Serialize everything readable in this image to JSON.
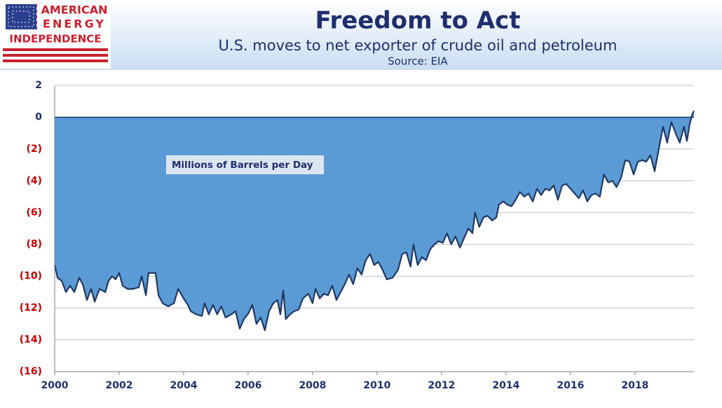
{
  "logo": {
    "lines": [
      "AMERICAN",
      "ENERGY",
      "INDEPENDENCE"
    ]
  },
  "chart_data": {
    "type": "area",
    "title": "Freedom to Act",
    "subtitle": "U.S. moves to net exporter of crude oil and petroleum",
    "source": "Source: EIA",
    "annotation": "Millions of Barrels per Day",
    "color": "#5b9bd5",
    "line_color": "#1f3864",
    "grid": true,
    "xlim": [
      2000,
      2019.83
    ],
    "xticks": [
      2000,
      2002,
      2004,
      2006,
      2008,
      2010,
      2012,
      2014,
      2016,
      2018
    ],
    "ylim": [
      -16,
      2
    ],
    "yticks": [
      2,
      0,
      {
        "value": -2,
        "label": "(2)"
      },
      {
        "value": -4,
        "label": "(4)"
      },
      {
        "value": -6,
        "label": "(6)"
      },
      {
        "value": -8,
        "label": "(8)"
      },
      {
        "value": -10,
        "label": "(10)"
      },
      {
        "value": -12,
        "label": "(12)"
      },
      {
        "value": -14,
        "label": "(14)"
      },
      {
        "value": -16,
        "label": "(16)"
      }
    ],
    "x": [
      2000.0,
      2000.09,
      2000.22,
      2000.35,
      2000.48,
      2000.61,
      2000.76,
      2000.87,
      2001.0,
      2001.13,
      2001.24,
      2001.39,
      2001.57,
      2001.67,
      2001.78,
      2001.89,
      2002.0,
      2002.11,
      2002.26,
      2002.43,
      2002.61,
      2002.7,
      2002.83,
      2002.91,
      2003.13,
      2003.22,
      2003.35,
      2003.52,
      2003.7,
      2003.83,
      2004.0,
      2004.13,
      2004.22,
      2004.39,
      2004.57,
      2004.65,
      2004.78,
      2004.91,
      2005.04,
      2005.17,
      2005.3,
      2005.48,
      2005.61,
      2005.74,
      2005.87,
      2006.02,
      2006.13,
      2006.26,
      2006.39,
      2006.52,
      2006.65,
      2006.78,
      2006.91,
      2007.0,
      2007.09,
      2007.17,
      2007.3,
      2007.43,
      2007.57,
      2007.7,
      2007.87,
      2008.0,
      2008.09,
      2008.22,
      2008.35,
      2008.48,
      2008.61,
      2008.74,
      2008.87,
      2009.0,
      2009.13,
      2009.26,
      2009.39,
      2009.52,
      2009.65,
      2009.78,
      2009.91,
      2010.04,
      2010.17,
      2010.3,
      2010.48,
      2010.65,
      2010.78,
      2010.91,
      2011.04,
      2011.13,
      2011.26,
      2011.39,
      2011.52,
      2011.65,
      2011.78,
      2011.91,
      2012.04,
      2012.17,
      2012.3,
      2012.43,
      2012.57,
      2012.7,
      2012.83,
      2012.96,
      2013.04,
      2013.17,
      2013.3,
      2013.43,
      2013.57,
      2013.7,
      2013.78,
      2013.91,
      2014.04,
      2014.17,
      2014.3,
      2014.43,
      2014.57,
      2014.7,
      2014.83,
      2014.96,
      2015.09,
      2015.22,
      2015.35,
      2015.48,
      2015.61,
      2015.74,
      2015.87,
      2016.0,
      2016.13,
      2016.26,
      2016.39,
      2016.52,
      2016.65,
      2016.78,
      2016.91,
      2017.04,
      2017.17,
      2017.3,
      2017.43,
      2017.57,
      2017.7,
      2017.83,
      2017.96,
      2018.09,
      2018.22,
      2018.35,
      2018.48,
      2018.61,
      2018.74,
      2018.87,
      2019.0,
      2019.13,
      2019.26,
      2019.39,
      2019.52,
      2019.61,
      2019.7,
      2019.78,
      2019.83
    ],
    "values": [
      -9.3,
      -10.1,
      -10.3,
      -11.0,
      -10.6,
      -11.0,
      -10.1,
      -10.5,
      -11.5,
      -10.8,
      -11.6,
      -10.8,
      -11.0,
      -10.3,
      -10.0,
      -10.2,
      -9.8,
      -10.6,
      -10.8,
      -10.8,
      -10.7,
      -10.0,
      -11.2,
      -9.8,
      -9.8,
      -11.2,
      -11.7,
      -11.9,
      -11.7,
      -10.8,
      -11.4,
      -11.8,
      -12.2,
      -12.4,
      -12.5,
      -11.7,
      -12.4,
      -11.8,
      -12.4,
      -11.9,
      -12.6,
      -12.4,
      -12.2,
      -13.3,
      -12.7,
      -12.3,
      -11.8,
      -13.0,
      -12.6,
      -13.4,
      -12.2,
      -11.7,
      -11.5,
      -12.4,
      -10.9,
      -12.7,
      -12.4,
      -12.2,
      -12.1,
      -11.4,
      -11.1,
      -11.7,
      -10.8,
      -11.4,
      -11.1,
      -11.2,
      -10.6,
      -11.5,
      -11.0,
      -10.5,
      -9.9,
      -10.5,
      -9.5,
      -9.9,
      -9.0,
      -8.6,
      -9.3,
      -9.1,
      -9.6,
      -10.2,
      -10.1,
      -9.6,
      -8.6,
      -8.5,
      -9.4,
      -8.0,
      -9.3,
      -8.8,
      -9.0,
      -8.3,
      -8.0,
      -7.8,
      -7.9,
      -7.3,
      -8.0,
      -7.5,
      -8.2,
      -7.6,
      -7.0,
      -7.3,
      -6.0,
      -6.9,
      -6.3,
      -6.2,
      -6.5,
      -6.3,
      -5.5,
      -5.3,
      -5.5,
      -5.6,
      -5.2,
      -4.7,
      -5.0,
      -4.8,
      -5.3,
      -4.5,
      -4.9,
      -4.5,
      -4.6,
      -4.3,
      -5.2,
      -4.3,
      -4.2,
      -4.5,
      -4.8,
      -5.1,
      -4.6,
      -5.3,
      -4.9,
      -4.8,
      -5.0,
      -3.6,
      -4.1,
      -4.0,
      -4.4,
      -3.8,
      -2.7,
      -2.8,
      -3.6,
      -2.8,
      -2.7,
      -2.8,
      -2.4,
      -3.4,
      -2.0,
      -0.6,
      -1.6,
      -0.3,
      -1.0,
      -1.6,
      -0.6,
      -1.5,
      -0.4,
      0.2,
      0.4
    ]
  }
}
